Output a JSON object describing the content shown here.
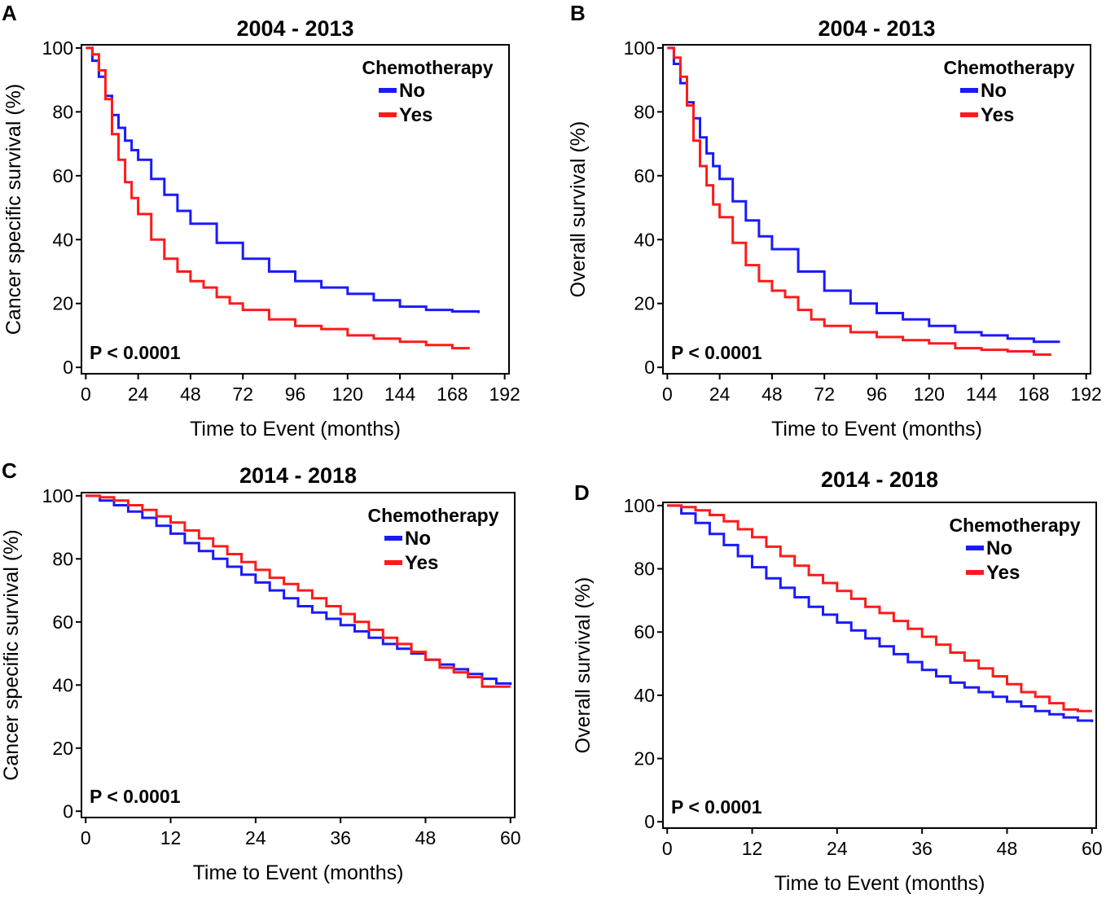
{
  "figure": {
    "colors": {
      "No": "#1a1aff",
      "Yes": "#ff1a1a",
      "axis": "#000000"
    }
  },
  "chart_data": [
    {
      "panel": "A",
      "type": "line",
      "step": true,
      "title": "2004 - 2013",
      "xlabel": "Time to Event (months)",
      "ylabel": "Cancer specific survival (%)",
      "xlim": [
        -2,
        194
      ],
      "ylim": [
        -2,
        101
      ],
      "xticks": [
        0,
        24,
        48,
        72,
        96,
        120,
        144,
        168,
        192
      ],
      "yticks": [
        0,
        20,
        40,
        60,
        80,
        100
      ],
      "legend_title": "Chemotherapy",
      "legend_position": "top-right",
      "annotation": "P < 0.0001",
      "series": [
        {
          "name": "No",
          "x": [
            0,
            3,
            6,
            9,
            12,
            15,
            18,
            21,
            24,
            30,
            36,
            42,
            48,
            60,
            72,
            84,
            96,
            108,
            120,
            132,
            144,
            156,
            168,
            180
          ],
          "y": [
            100,
            96,
            91,
            85,
            79,
            75,
            71,
            68,
            65,
            59,
            54,
            49,
            45,
            39,
            34,
            30,
            27,
            25,
            23,
            21,
            19,
            18,
            17.5,
            17
          ]
        },
        {
          "name": "Yes",
          "x": [
            0,
            3,
            6,
            9,
            12,
            15,
            18,
            21,
            24,
            30,
            36,
            42,
            48,
            54,
            60,
            66,
            72,
            84,
            96,
            108,
            120,
            132,
            144,
            156,
            168,
            176
          ],
          "y": [
            100,
            98,
            93,
            84,
            73,
            65,
            58,
            53,
            48,
            40,
            34,
            30,
            27,
            25,
            22,
            20,
            18,
            15,
            13,
            12,
            10,
            9,
            8,
            7,
            6,
            6
          ]
        }
      ]
    },
    {
      "panel": "B",
      "type": "line",
      "step": true,
      "title": "2004 - 2013",
      "xlabel": "Time to Event (months)",
      "ylabel": "Overall survival (%)",
      "xlim": [
        -2,
        194
      ],
      "ylim": [
        -2,
        101
      ],
      "xticks": [
        0,
        24,
        48,
        72,
        96,
        120,
        144,
        168,
        192
      ],
      "yticks": [
        0,
        20,
        40,
        60,
        80,
        100
      ],
      "legend_title": "Chemotherapy",
      "legend_position": "top-right",
      "annotation": "P < 0.0001",
      "series": [
        {
          "name": "No",
          "x": [
            0,
            3,
            6,
            9,
            12,
            15,
            18,
            21,
            24,
            30,
            36,
            42,
            48,
            60,
            72,
            84,
            96,
            108,
            120,
            132,
            144,
            156,
            168,
            180
          ],
          "y": [
            100,
            95,
            89,
            83,
            78,
            72,
            67,
            63,
            59,
            52,
            46,
            41,
            37,
            30,
            24,
            20,
            17,
            15,
            13,
            11,
            10,
            9,
            8,
            8
          ]
        },
        {
          "name": "Yes",
          "x": [
            0,
            3,
            6,
            9,
            12,
            15,
            18,
            21,
            24,
            30,
            36,
            42,
            48,
            54,
            60,
            66,
            72,
            84,
            96,
            108,
            120,
            132,
            144,
            156,
            168,
            176
          ],
          "y": [
            100,
            97,
            91,
            82,
            71,
            63,
            57,
            51,
            47,
            39,
            32,
            27,
            24,
            22,
            18,
            15,
            13,
            11,
            9.5,
            8.5,
            7.5,
            6,
            5.5,
            5,
            4,
            4
          ]
        }
      ]
    },
    {
      "panel": "C",
      "type": "line",
      "step": true,
      "title": "2014 - 2018",
      "xlabel": "Time to Event (months)",
      "ylabel": "Cancer specific survival (%)",
      "xlim": [
        -0.6,
        60.6
      ],
      "ylim": [
        -2,
        101
      ],
      "xticks": [
        0,
        12,
        24,
        36,
        48,
        60
      ],
      "yticks": [
        0,
        20,
        40,
        60,
        80,
        100
      ],
      "legend_title": "Chemotherapy",
      "legend_position": "top-right",
      "annotation": "P < 0.0001",
      "series": [
        {
          "name": "No",
          "x": [
            0,
            2,
            4,
            6,
            8,
            10,
            12,
            14,
            16,
            18,
            20,
            22,
            24,
            26,
            28,
            30,
            32,
            34,
            36,
            38,
            40,
            42,
            44,
            46,
            48,
            50,
            52,
            54,
            56,
            58,
            60
          ],
          "y": [
            100,
            98.5,
            97,
            95,
            93,
            90.5,
            88,
            85,
            82.5,
            80,
            77.5,
            75,
            72.5,
            70,
            67.5,
            65,
            63,
            61,
            59,
            57,
            55,
            53,
            51.5,
            50,
            48,
            46.5,
            45,
            43.5,
            42,
            40.5,
            40
          ]
        },
        {
          "name": "Yes",
          "x": [
            0,
            2,
            4,
            6,
            8,
            10,
            12,
            14,
            16,
            18,
            20,
            22,
            24,
            26,
            28,
            30,
            32,
            34,
            36,
            38,
            40,
            42,
            44,
            46,
            48,
            50,
            52,
            54,
            56,
            58,
            60
          ],
          "y": [
            100,
            99.5,
            98.5,
            97,
            95.5,
            93.5,
            91.5,
            89,
            86.5,
            84,
            81.5,
            79,
            76.5,
            74,
            72,
            70,
            67.5,
            65,
            62.5,
            60,
            57.5,
            55,
            53,
            50.5,
            48,
            45.5,
            44,
            42.5,
            39.5,
            39.5,
            39.5
          ]
        }
      ]
    },
    {
      "panel": "D",
      "type": "line",
      "step": true,
      "title": "2014 - 2018",
      "xlabel": "Time to Event (months)",
      "ylabel": "Overall survival (%)",
      "xlim": [
        -0.6,
        60.6
      ],
      "ylim": [
        -2,
        101
      ],
      "xticks": [
        0,
        12,
        24,
        36,
        48,
        60
      ],
      "yticks": [
        0,
        20,
        40,
        60,
        80,
        100
      ],
      "legend_title": "Chemotherapy",
      "legend_position": "top-right",
      "annotation": "P < 0.0001",
      "series": [
        {
          "name": "No",
          "x": [
            0,
            2,
            4,
            6,
            8,
            10,
            12,
            14,
            16,
            18,
            20,
            22,
            24,
            26,
            28,
            30,
            32,
            34,
            36,
            38,
            40,
            42,
            44,
            46,
            48,
            50,
            52,
            54,
            56,
            58,
            60
          ],
          "y": [
            100,
            97.5,
            94.5,
            91,
            87.5,
            84,
            80.5,
            77,
            74,
            71,
            68,
            65.5,
            63,
            60.5,
            58,
            55.5,
            53,
            50.5,
            48,
            46,
            44,
            42.5,
            41,
            39.5,
            38,
            36.5,
            35,
            34,
            33,
            32,
            31.5
          ]
        },
        {
          "name": "Yes",
          "x": [
            0,
            2,
            4,
            6,
            8,
            10,
            12,
            14,
            16,
            18,
            20,
            22,
            24,
            26,
            28,
            30,
            32,
            34,
            36,
            38,
            40,
            42,
            44,
            46,
            48,
            50,
            52,
            54,
            56,
            58,
            60
          ],
          "y": [
            100,
            99.5,
            98.5,
            97,
            95,
            92.5,
            90,
            87,
            84,
            81,
            78,
            75.5,
            73,
            70.5,
            68,
            66,
            63.5,
            61,
            58.5,
            56,
            53.5,
            51,
            48.5,
            46,
            43.5,
            41,
            39.5,
            37.5,
            35.5,
            35,
            35
          ]
        }
      ]
    }
  ]
}
